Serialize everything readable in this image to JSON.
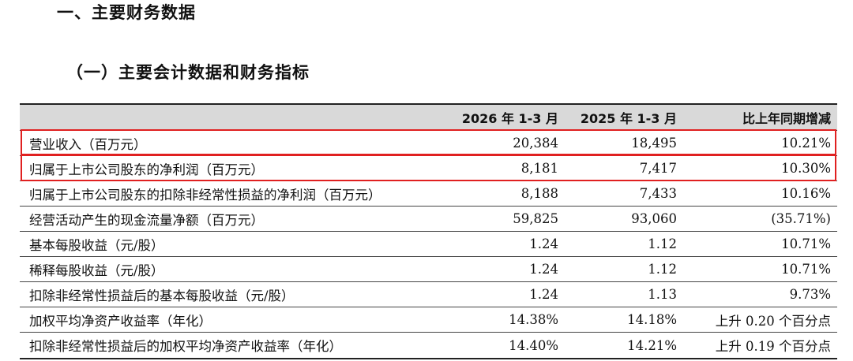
{
  "section_title": "一、主要财务数据",
  "subsection_title": "（一）主要会计数据和财务指标",
  "table": {
    "headers": [
      "",
      "2026 年 1-3 月",
      "2025 年 1-3 月",
      "比上年同期增减"
    ],
    "rows": [
      {
        "label": "营业收入（百万元）",
        "v2026": "20,384",
        "v2025": "18,495",
        "change": "10.21%"
      },
      {
        "label": "归属于上市公司股东的净利润（百万元）",
        "v2026": "8,181",
        "v2025": "7,417",
        "change": "10.30%"
      },
      {
        "label": "归属于上市公司股东的扣除非经常性损益的净利润（百万元）",
        "v2026": "8,188",
        "v2025": "7,433",
        "change": "10.16%"
      },
      {
        "label": "经营活动产生的现金流量净额（百万元）",
        "v2026": "59,825",
        "v2025": "93,060",
        "change": "(35.71%)"
      },
      {
        "label": "基本每股收益（元/股）",
        "v2026": "1.24",
        "v2025": "1.12",
        "change": "10.71%"
      },
      {
        "label": "稀释每股收益（元/股）",
        "v2026": "1.24",
        "v2025": "1.12",
        "change": "10.71%"
      },
      {
        "label": "扣除非经常性损益后的基本每股收益（元/股）",
        "v2026": "1.24",
        "v2025": "1.13",
        "change": "9.73%"
      },
      {
        "label": "加权平均净资产收益率（年化）",
        "v2026": "14.38%",
        "v2025": "14.18%",
        "change": "上升 0.20 个百分点"
      },
      {
        "label": "扣除非经常性损益后的加权平均净资产收益率（年化）",
        "v2026": "14.40%",
        "v2025": "14.21%",
        "change": "上升 0.19 个百分点"
      }
    ]
  },
  "highlight_color": "#e02020",
  "header_bg_color": "#d9d9d9"
}
